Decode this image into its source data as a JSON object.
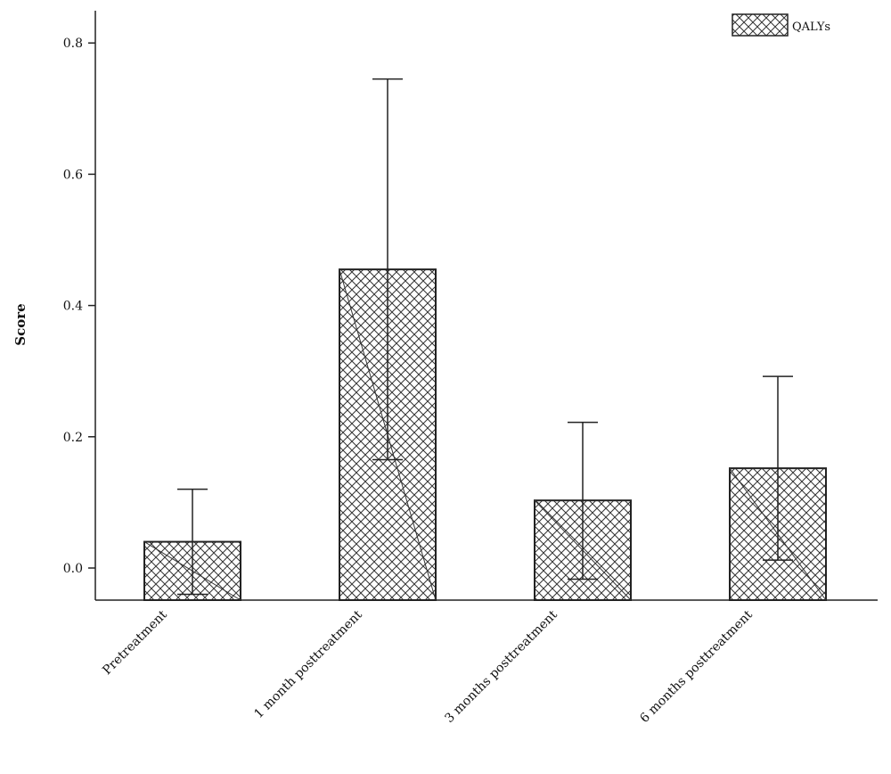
{
  "chart_data": {
    "type": "bar",
    "categories": [
      "Pretreatment",
      "1 month posttreatment",
      "3 months posttreatment",
      "6 months posttreatment"
    ],
    "series": [
      {
        "name": "QALYs",
        "values": [
          0.04,
          0.455,
          0.103,
          0.152
        ],
        "error_low": [
          -0.04,
          0.165,
          -0.017,
          0.012
        ],
        "error_high": [
          0.12,
          0.745,
          0.222,
          0.292
        ]
      }
    ],
    "xlabel": "",
    "ylabel": "Score",
    "ylim": [
      -0.05,
      0.85
    ],
    "yticks": [
      "0.0",
      "0.2",
      "0.4",
      "0.6",
      "0.8"
    ],
    "legend_position": "top-right",
    "grid": false,
    "colors": {
      "bar_fill": "#ffffff",
      "hatch": "#333333",
      "stroke": "#222222"
    },
    "pattern": "crosshatch"
  }
}
